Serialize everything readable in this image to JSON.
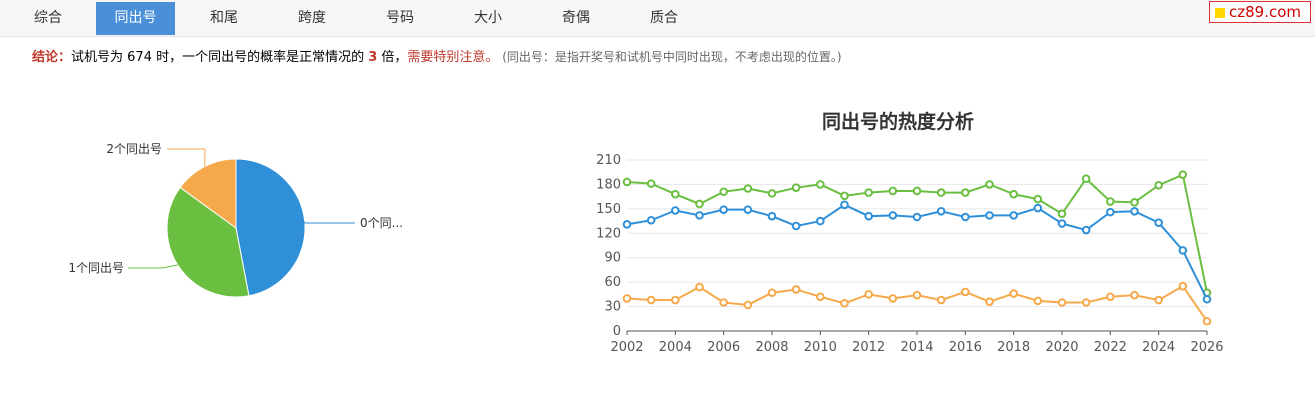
{
  "tabs": [
    {
      "label": "综合",
      "active": false
    },
    {
      "label": "同出号",
      "active": true
    },
    {
      "label": "和尾",
      "active": false
    },
    {
      "label": "跨度",
      "active": false
    },
    {
      "label": "号码",
      "active": false
    },
    {
      "label": "大小",
      "active": false
    },
    {
      "label": "奇偶",
      "active": false
    },
    {
      "label": "质合",
      "active": false
    }
  ],
  "logo": {
    "text": "cz89.com"
  },
  "conclusion": {
    "label": "结论：",
    "text1": "试机号为 674 时，一个同出号的概率是正常情况的 ",
    "multiplier": "3",
    "text2": " 倍，",
    "warning": "需要特别注意。",
    "note": " (同出号：是指开奖号和试机号中同时出现，不考虑出现的位置。)"
  },
  "chart_data": [
    {
      "type": "pie",
      "labels": [
        "0个同...",
        "1个同出号",
        "2个同出号"
      ],
      "values": [
        47,
        38,
        15
      ],
      "colors": [
        "#2f8fd8",
        "#6abf40",
        "#f5a94a"
      ]
    },
    {
      "type": "line",
      "title": "同出号的热度分析",
      "x": [
        2002,
        2003,
        2004,
        2005,
        2006,
        2007,
        2008,
        2009,
        2010,
        2011,
        2012,
        2013,
        2014,
        2015,
        2016,
        2017,
        2018,
        2019,
        2020,
        2021,
        2022,
        2023,
        2024,
        2025,
        2026
      ],
      "xticks": [
        "2002",
        "2004",
        "2006",
        "2008",
        "2010",
        "2012",
        "2014",
        "2016",
        "2018",
        "2020",
        "2022",
        "2024",
        "2026"
      ],
      "yticks": [
        "0",
        "30",
        "60",
        "90",
        "120",
        "150",
        "180",
        "210"
      ],
      "ylim": [
        0,
        210
      ],
      "grid": true,
      "series": [
        {
          "color": "#6abf40",
          "values": [
            183,
            181,
            168,
            156,
            171,
            175,
            169,
            176,
            180,
            166,
            170,
            172,
            172,
            170,
            170,
            180,
            168,
            162,
            144,
            187,
            159,
            158,
            179,
            192,
            47
          ]
        },
        {
          "color": "#2f8fd8",
          "values": [
            131,
            136,
            148,
            142,
            149,
            149,
            141,
            129,
            135,
            155,
            141,
            142,
            140,
            147,
            140,
            142,
            142,
            151,
            132,
            124,
            146,
            147,
            133,
            99,
            39
          ]
        },
        {
          "color": "#f5a94a",
          "values": [
            40,
            38,
            38,
            54,
            35,
            32,
            47,
            51,
            42,
            34,
            45,
            40,
            44,
            38,
            48,
            36,
            46,
            37,
            35,
            35,
            42,
            44,
            38,
            55,
            12
          ]
        }
      ]
    }
  ]
}
